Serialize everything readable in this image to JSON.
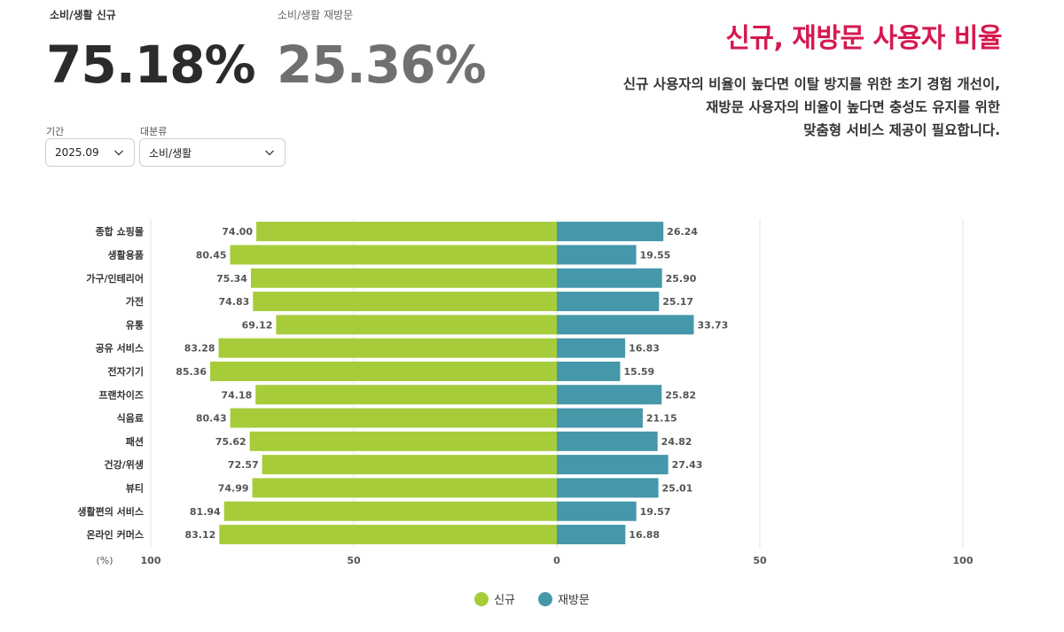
{
  "kpis": {
    "new": {
      "label": "소비/생활 신규",
      "value": "75.18%"
    },
    "revisit": {
      "label": "소비/생활 재방문",
      "value": "25.36%"
    }
  },
  "filters": {
    "period": {
      "label": "기간",
      "value": "2025.09"
    },
    "category": {
      "label": "대분류",
      "value": "소비/생활"
    }
  },
  "header": {
    "title": "신규, 재방문 사용자 비율",
    "description": [
      "신규 사용자의 비율이 높다면 이탈 방지를 위한 초기 경험 개선이,",
      "재방문 사용자의 비율이 높다면 충성도 유지를 위한",
      "맞춤형 서비스 제공이 필요합니다."
    ]
  },
  "colors": {
    "new": "#a6cc3a",
    "revisit": "#4597aa",
    "grid": "#e3e3e3",
    "axis_text": "#555555"
  },
  "chart_data": {
    "type": "bar",
    "orientation": "horizontal-diverging",
    "categories": [
      "종합 쇼핑몰",
      "생활용품",
      "가구/인테리어",
      "가전",
      "유통",
      "공유 서비스",
      "전자기기",
      "프랜차이즈",
      "식음료",
      "패션",
      "건강/위생",
      "뷰티",
      "생활편의 서비스",
      "온라인 커머스"
    ],
    "series": [
      {
        "name": "신규",
        "direction": "left",
        "values": [
          74.0,
          80.45,
          75.34,
          74.83,
          69.12,
          83.28,
          85.36,
          74.18,
          80.43,
          75.62,
          72.57,
          74.99,
          81.94,
          83.12
        ]
      },
      {
        "name": "재방문",
        "direction": "right",
        "values": [
          26.24,
          19.55,
          25.9,
          25.17,
          33.73,
          16.83,
          15.59,
          25.82,
          21.15,
          24.82,
          27.43,
          25.01,
          19.57,
          16.88
        ]
      }
    ],
    "x_ticks": [
      "100",
      "50",
      "0",
      "50",
      "100"
    ],
    "x_unit": "(%)",
    "xlim": [
      -100,
      100
    ],
    "grid": true,
    "legend_position": "bottom-center"
  }
}
